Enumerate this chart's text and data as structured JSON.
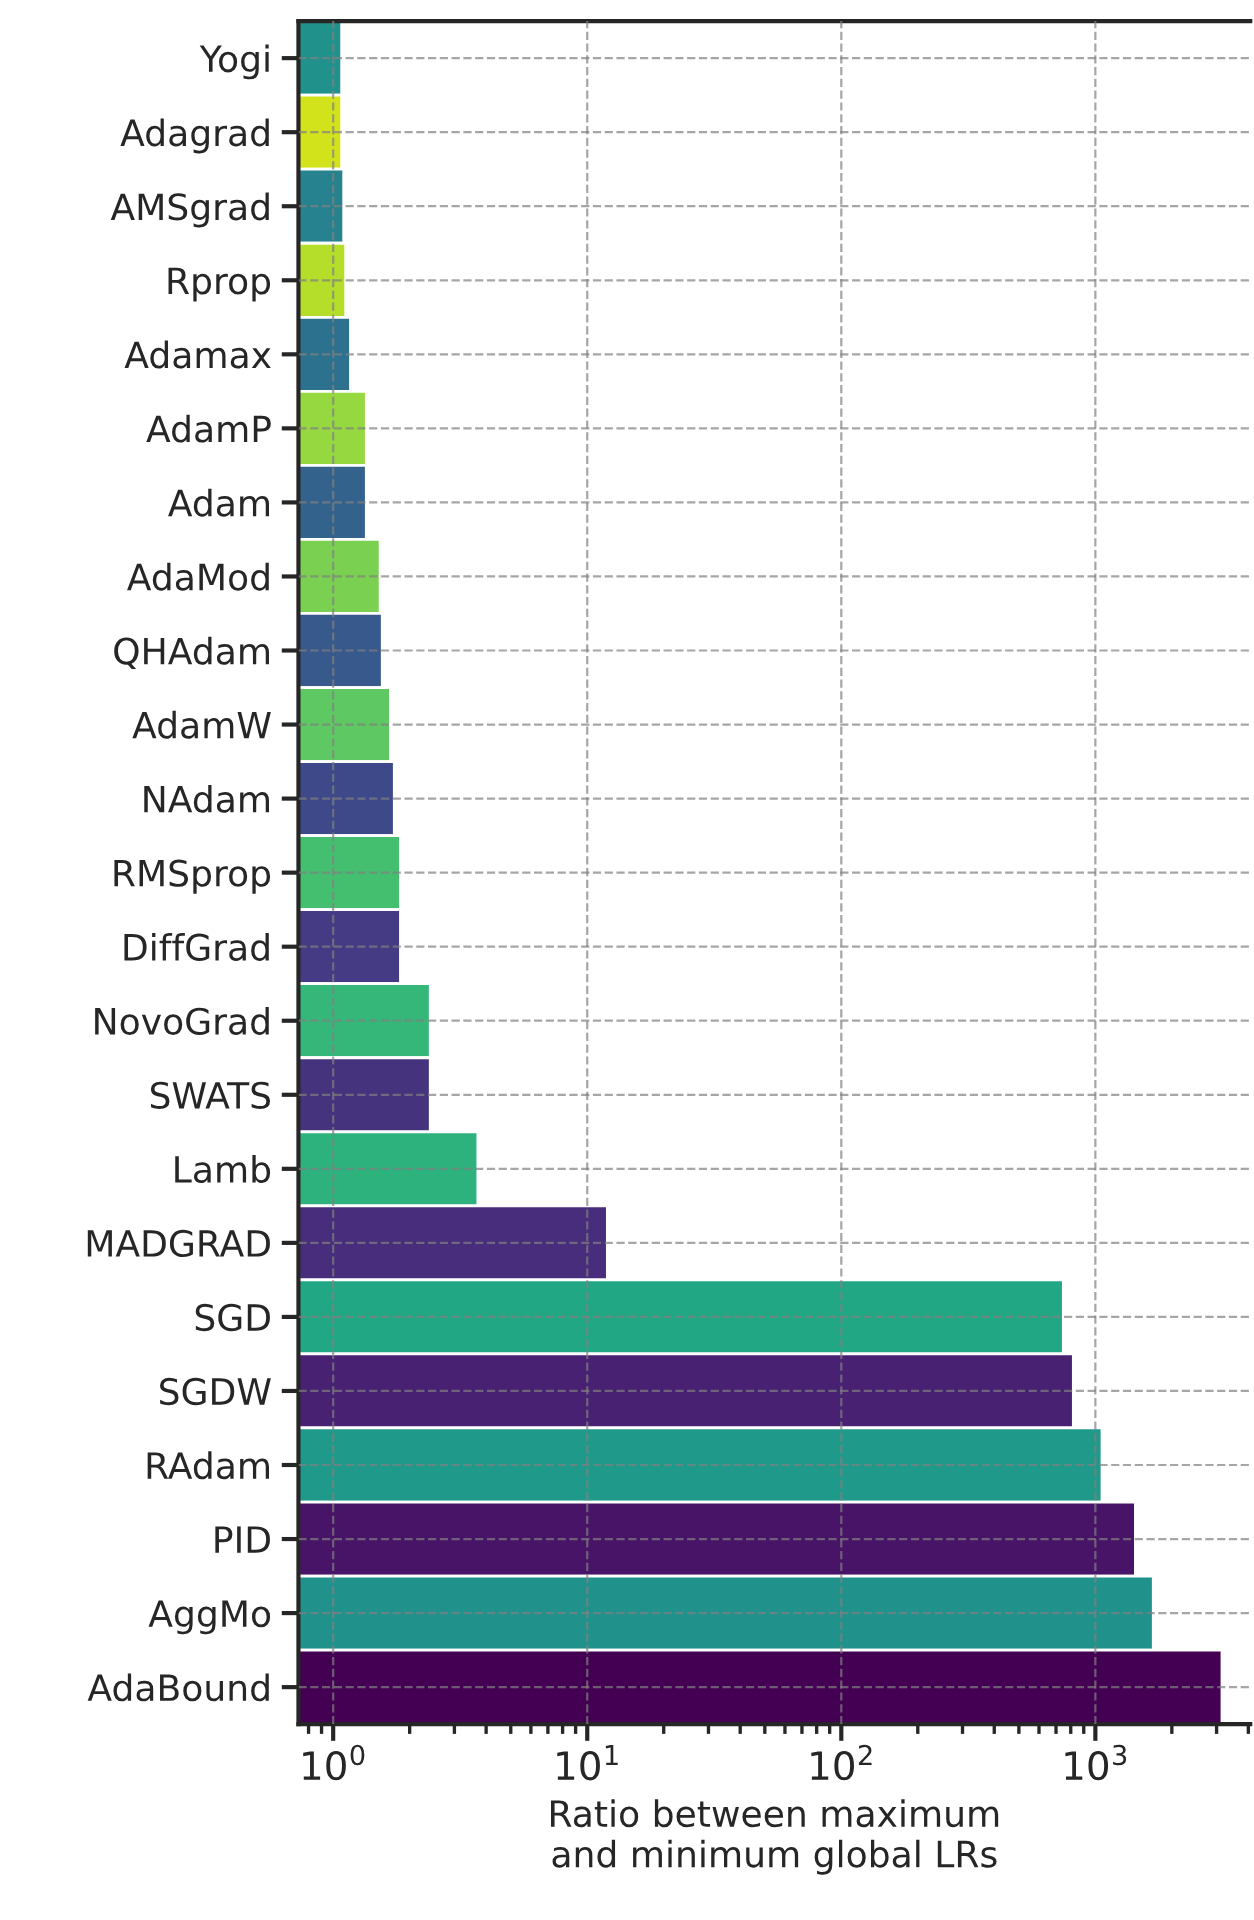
{
  "chart_data": {
    "type": "bar",
    "orientation": "horizontal",
    "log": "x",
    "grid": true,
    "xlabel": "Ratio between maximum\nand minimum global LRs",
    "categories": [
      "Yogi",
      "Adagrad",
      "AMSgrad",
      "Rprop",
      "Adamax",
      "AdamP",
      "Adam",
      "AdaMod",
      "QHAdam",
      "AdamW",
      "NAdam",
      "RMSprop",
      "DiffGrad",
      "NovoGrad",
      "SWATS",
      "Lamb",
      "MADGRAD",
      "SGD",
      "SGDW",
      "RAdam",
      "PID",
      "AggMo",
      "AdaBound"
    ],
    "values": [
      1.08,
      1.08,
      1.1,
      1.12,
      1.17,
      1.35,
      1.35,
      1.53,
      1.56,
      1.68,
      1.74,
      1.84,
      1.84,
      2.41,
      2.41,
      3.71,
      12.0,
      748,
      819,
      1062,
      1437,
      1690,
      3150
    ],
    "colors": [
      "#21918c",
      "#d2e21b",
      "#26828e",
      "#b5de2b",
      "#2c728e",
      "#95d840",
      "#33638d",
      "#7ad151",
      "#38598c",
      "#5ec962",
      "#3e4989",
      "#44bf70",
      "#443b84",
      "#35b779",
      "#46337e",
      "#2db27d",
      "#472d7b",
      "#22a785",
      "#482173",
      "#1f9a8a",
      "#481467",
      "#21918c",
      "#440154"
    ],
    "xlim": [
      0.73,
      4070
    ],
    "xticks": [
      {
        "value": 1,
        "label": "10$^{0}$"
      },
      {
        "value": 10,
        "label": "10$^{1}$"
      },
      {
        "value": 100,
        "label": "10$^{2}$"
      },
      {
        "value": 1000,
        "label": "10$^{3}$"
      }
    ]
  }
}
